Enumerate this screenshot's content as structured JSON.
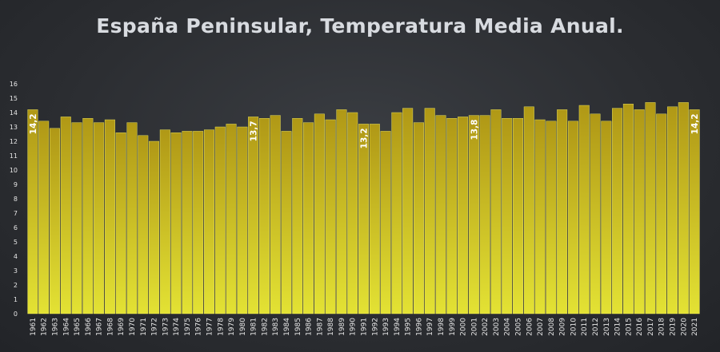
{
  "chart_data": {
    "type": "bar",
    "title": "España Peninsular, Temperatura Media Anual.",
    "categories": [
      "1961",
      "1962",
      "1963",
      "1964",
      "1965",
      "1966",
      "1967",
      "1968",
      "1969",
      "1970",
      "1971",
      "1972",
      "1973",
      "1974",
      "1975",
      "1976",
      "1977",
      "1978",
      "1979",
      "1980",
      "1981",
      "1982",
      "1983",
      "1984",
      "1985",
      "1986",
      "1987",
      "1988",
      "1989",
      "1990",
      "1991",
      "1992",
      "1993",
      "1994",
      "1995",
      "1996",
      "1997",
      "1998",
      "1999",
      "2000",
      "2001",
      "2002",
      "2003",
      "2004",
      "2005",
      "2006",
      "2007",
      "2008",
      "2009",
      "2010",
      "2011",
      "2012",
      "2013",
      "2014",
      "2015",
      "2016",
      "2017",
      "2018",
      "2019",
      "2020",
      "2021"
    ],
    "values": [
      14.2,
      13.4,
      12.9,
      13.7,
      13.3,
      13.6,
      13.3,
      13.5,
      12.6,
      13.3,
      12.4,
      12.0,
      12.8,
      12.6,
      12.7,
      12.7,
      12.8,
      13.0,
      13.2,
      13.0,
      13.7,
      13.6,
      13.8,
      12.7,
      13.6,
      13.3,
      13.9,
      13.5,
      14.2,
      14.0,
      13.2,
      13.2,
      12.7,
      14.0,
      14.3,
      13.3,
      14.3,
      13.8,
      13.6,
      13.7,
      13.8,
      13.8,
      14.2,
      13.6,
      13.6,
      14.4,
      13.5,
      13.4,
      14.2,
      13.4,
      14.5,
      13.9,
      13.4,
      14.3,
      14.6,
      14.2,
      14.7,
      13.9,
      14.4,
      14.7,
      14.2
    ],
    "data_labels": [
      {
        "category": "1961",
        "text": "14,2"
      },
      {
        "category": "1981",
        "text": "13,7"
      },
      {
        "category": "1991",
        "text": "13,2"
      },
      {
        "category": "2001",
        "text": "13,8"
      },
      {
        "category": "2021",
        "text": "14,2"
      }
    ],
    "ylim": [
      0,
      16
    ],
    "yticks": [
      0,
      1,
      2,
      3,
      4,
      5,
      6,
      7,
      8,
      9,
      10,
      11,
      12,
      13,
      14,
      15,
      16
    ],
    "grid": false,
    "colors": {
      "bar_top": "#b09816",
      "bar_bottom": "#e3e234",
      "bar_edge": "#f4f06a",
      "label": "#ffffff",
      "background": "#2e3034"
    }
  }
}
